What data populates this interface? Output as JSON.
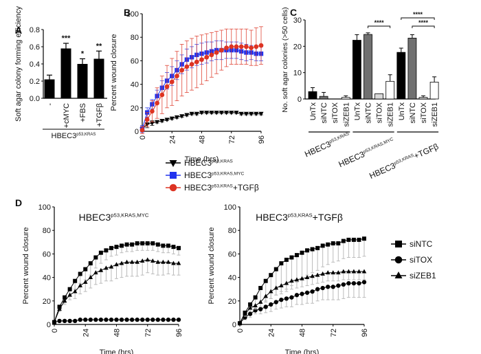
{
  "chart_data": [
    {
      "panel": "A",
      "type": "bar",
      "ylabel": "Soft agar colony forming efficiency",
      "ylim": [
        0,
        0.8
      ],
      "yticks": [
        "0.0",
        "0.2",
        "0.4",
        "0.6",
        "0.8"
      ],
      "categories": [
        "-",
        "+cMYC",
        "+FBS",
        "+TGFβ"
      ],
      "values": [
        0.22,
        0.58,
        0.4,
        0.46
      ],
      "errors": [
        0.05,
        0.06,
        0.06,
        0.09
      ],
      "significance": [
        "",
        "***",
        "*",
        "**"
      ],
      "group_label": {
        "base": "HBEC3",
        "sup": "p53,KRAS"
      },
      "color": "#000000"
    },
    {
      "panel": "B",
      "type": "line",
      "xlabel": "Time (hrs)",
      "ylabel": "Percent wound closure",
      "xlim": [
        0,
        96
      ],
      "ylim": [
        0,
        100
      ],
      "xticks": [
        "0",
        "24",
        "48",
        "72",
        "96"
      ],
      "yticks": [
        "0",
        "20",
        "40",
        "60",
        "80",
        "100"
      ],
      "x": [
        0,
        4,
        8,
        12,
        16,
        20,
        24,
        28,
        32,
        36,
        40,
        44,
        48,
        52,
        56,
        60,
        64,
        68,
        72,
        76,
        80,
        84,
        88,
        92,
        96
      ],
      "series": [
        {
          "name": {
            "base": "HBEC3",
            "sup": "p53,KRAS",
            "suffix": ""
          },
          "color": "#000000",
          "marker": "triangle-down",
          "values": [
            2,
            6,
            7,
            8,
            9,
            10,
            11,
            12,
            13,
            14,
            15,
            15,
            16,
            16,
            16,
            16,
            16,
            16,
            16,
            16,
            15,
            15,
            15,
            15,
            15
          ],
          "errors": [
            2,
            3,
            2,
            1,
            1,
            1,
            1,
            1,
            1,
            1,
            1,
            1,
            1,
            1,
            1,
            1,
            1,
            1,
            1,
            1,
            1,
            1,
            1,
            1,
            1
          ]
        },
        {
          "name": {
            "base": "HBEC3",
            "sup": "p53,KRAS,MYC",
            "suffix": ""
          },
          "color": "#2233ee",
          "marker": "square",
          "values": [
            2,
            16,
            23,
            30,
            37,
            43,
            47,
            52,
            57,
            61,
            63,
            65,
            66,
            67,
            68,
            69,
            69,
            69,
            69,
            69,
            68,
            67,
            67,
            66,
            66
          ],
          "errors": [
            3,
            4,
            4,
            5,
            6,
            7,
            8,
            8,
            8,
            9,
            9,
            9,
            9,
            9,
            8,
            8,
            8,
            7,
            7,
            7,
            7,
            7,
            6,
            6,
            6
          ]
        },
        {
          "name": {
            "base": "HBEC3",
            "sup": "p53,KRAS",
            "suffix": "+TGFβ"
          },
          "color": "#dd3322",
          "marker": "circle",
          "values": [
            1,
            10,
            17,
            24,
            31,
            38,
            42,
            47,
            52,
            55,
            57,
            59,
            61,
            63,
            65,
            67,
            69,
            71,
            72,
            72,
            72,
            72,
            71,
            72,
            73
          ],
          "errors": [
            3,
            6,
            9,
            13,
            16,
            18,
            20,
            21,
            22,
            22,
            22,
            22,
            21,
            20,
            19,
            18,
            17,
            16,
            15,
            15,
            15,
            15,
            15,
            16,
            16
          ]
        }
      ],
      "legend_position": "bottom"
    },
    {
      "panel": "C",
      "type": "bar",
      "ylabel": "No. soft agar colonies (>50 cells)",
      "ylim": [
        0,
        30
      ],
      "yticks": [
        "0",
        "10",
        "20",
        "30"
      ],
      "categories": [
        "UnTx",
        "siNTC",
        "siTOX",
        "siZEB1",
        "UnTx",
        "siNTC",
        "siTOX",
        "siZEB1",
        "UnTx",
        "siNTC",
        "siTOX",
        "siZEB1"
      ],
      "values": [
        2.8,
        1.0,
        0.0,
        0.6,
        22.3,
        24.5,
        2.0,
        6.7,
        17.7,
        23.1,
        0.6,
        6.4
      ],
      "errors": [
        1.5,
        1.5,
        0.0,
        0.6,
        2.1,
        0.6,
        0.0,
        2.5,
        1.6,
        1.3,
        0.6,
        2.0
      ],
      "colors": [
        "#000000",
        "#707070",
        "#d8d8d8",
        "#ffffff",
        "#000000",
        "#707070",
        "#d8d8d8",
        "#ffffff",
        "#000000",
        "#707070",
        "#d8d8d8",
        "#ffffff"
      ],
      "groups": [
        {
          "base": "HBEC3",
          "sup": "p53,KRAS",
          "suffix": ""
        },
        {
          "base": "HBEC3",
          "sup": "p53,KRAS,MYC",
          "suffix": ""
        },
        {
          "base": "HBEC3",
          "sup": "p53,KRAS",
          "suffix": "+TGFβ"
        }
      ],
      "significance_brackets": [
        {
          "from": 5,
          "to": 7,
          "label": "****"
        },
        {
          "from": 8,
          "to": 11,
          "label": "****"
        },
        {
          "from": 9,
          "to": 11,
          "label": "****"
        }
      ]
    },
    {
      "panel": "D-left",
      "type": "line",
      "title": {
        "base": "HBEC3",
        "sup": "p53,KRAS,MYC",
        "suffix": ""
      },
      "xlabel": "Time (hrs)",
      "ylabel": "Percent wound closure",
      "xlim": [
        0,
        96
      ],
      "ylim": [
        0,
        100
      ],
      "xticks": [
        "0",
        "24",
        "48",
        "72",
        "96"
      ],
      "yticks": [
        "0",
        "20",
        "40",
        "60",
        "80",
        "100"
      ],
      "x": [
        0,
        4,
        8,
        12,
        16,
        20,
        24,
        28,
        32,
        36,
        40,
        44,
        48,
        52,
        56,
        60,
        64,
        68,
        72,
        76,
        80,
        84,
        88,
        92,
        96
      ],
      "series": [
        {
          "name": "siNTC",
          "marker": "square",
          "values": [
            2,
            15,
            23,
            30,
            37,
            43,
            47,
            52,
            57,
            61,
            63,
            65,
            66,
            67,
            68,
            68,
            69,
            69,
            69,
            69,
            68,
            67,
            67,
            66,
            65
          ],
          "errors": [
            1,
            2,
            3,
            5,
            7,
            8,
            9,
            10,
            9,
            9,
            8,
            7,
            7,
            6,
            6,
            6,
            6,
            6,
            6,
            6,
            6,
            6,
            6,
            6,
            6
          ]
        },
        {
          "name": "siTOX",
          "marker": "circle",
          "values": [
            2,
            3,
            3,
            3,
            3,
            4,
            4,
            4,
            4,
            4,
            4,
            4,
            4,
            4,
            4,
            4,
            4,
            4,
            4,
            4,
            4,
            4,
            4,
            4,
            4
          ],
          "errors": [
            1,
            1,
            1,
            1,
            1,
            1,
            1,
            1,
            1,
            1,
            1,
            1,
            1,
            1,
            1,
            1,
            1,
            1,
            1,
            1,
            1,
            1,
            1,
            1,
            1
          ]
        },
        {
          "name": "siZEB1",
          "marker": "triangle",
          "values": [
            2,
            13,
            20,
            25,
            28,
            33,
            36,
            40,
            44,
            46,
            48,
            49,
            51,
            52,
            53,
            53,
            53,
            54,
            55,
            54,
            53,
            53,
            53,
            52,
            52
          ],
          "errors": [
            1,
            2,
            3,
            4,
            6,
            7,
            8,
            9,
            10,
            11,
            11,
            12,
            12,
            12,
            12,
            12,
            12,
            12,
            11,
            11,
            11,
            11,
            10,
            10,
            10
          ]
        }
      ]
    },
    {
      "panel": "D-right",
      "type": "line",
      "title": {
        "base": "HBEC3",
        "sup": "p53,KRAS",
        "suffix": "+TGFβ"
      },
      "xlabel": "Time (hrs)",
      "ylabel": "Percent wound closure",
      "xlim": [
        0,
        96
      ],
      "ylim": [
        0,
        100
      ],
      "xticks": [
        "0",
        "24",
        "48",
        "72",
        "96"
      ],
      "yticks": [
        "0",
        "20",
        "40",
        "60",
        "80",
        "100"
      ],
      "x": [
        0,
        4,
        8,
        12,
        16,
        20,
        24,
        28,
        32,
        36,
        40,
        44,
        48,
        52,
        56,
        60,
        64,
        68,
        72,
        76,
        80,
        84,
        88,
        92,
        96
      ],
      "series": [
        {
          "name": "siNTC",
          "marker": "square",
          "values": [
            1,
            10,
            17,
            23,
            31,
            37,
            42,
            47,
            52,
            55,
            57,
            59,
            61,
            63,
            64,
            65,
            67,
            68,
            69,
            69,
            71,
            72,
            72,
            72,
            73
          ],
          "errors": [
            1,
            3,
            6,
            9,
            13,
            17,
            20,
            22,
            24,
            25,
            24,
            23,
            22,
            21,
            20,
            19,
            18,
            17,
            16,
            15,
            15,
            15,
            15,
            15,
            15
          ]
        },
        {
          "name": "siTOX",
          "marker": "circle",
          "values": [
            1,
            6,
            9,
            12,
            13,
            15,
            17,
            19,
            21,
            22,
            23,
            25,
            26,
            27,
            28,
            30,
            31,
            32,
            32,
            33,
            34,
            35,
            35,
            35,
            36
          ],
          "errors": [
            1,
            2,
            3,
            3,
            4,
            5,
            6,
            6,
            7,
            7,
            8,
            8,
            9,
            9,
            10,
            10,
            10,
            11,
            11,
            12,
            12,
            12,
            12,
            12,
            13
          ]
        },
        {
          "name": "siZEB1",
          "marker": "triangle",
          "values": [
            1,
            9,
            14,
            16,
            19,
            24,
            28,
            31,
            33,
            35,
            37,
            38,
            39,
            40,
            41,
            42,
            43,
            44,
            44,
            44,
            45,
            45,
            45,
            45,
            45
          ],
          "errors": [
            1,
            2,
            3,
            3,
            4,
            5,
            6,
            6,
            7,
            7,
            7,
            7,
            7,
            7,
            7,
            7,
            7,
            7,
            7,
            7,
            7,
            7,
            7,
            7,
            7
          ]
        }
      ],
      "legend_position": "right",
      "legend": [
        "siNTC",
        "siTOX",
        "siZEB1"
      ]
    }
  ],
  "panel_labels": [
    "A",
    "B",
    "C",
    "D"
  ]
}
